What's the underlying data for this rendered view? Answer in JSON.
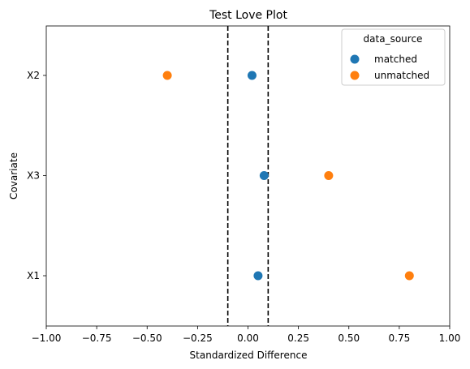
{
  "chart_data": {
    "type": "scatter",
    "title": "Test Love Plot",
    "xlabel": "Standardized Difference",
    "ylabel": "Covariate",
    "xlim": [
      -1.0,
      1.0
    ],
    "xticks": [
      -1.0,
      -0.75,
      -0.5,
      -0.25,
      0.0,
      0.25,
      0.5,
      0.75,
      1.0
    ],
    "xtick_labels": [
      "−1.00",
      "−0.75",
      "−0.50",
      "−0.25",
      "0.00",
      "0.25",
      "0.50",
      "0.75",
      "1.00"
    ],
    "categories": [
      "X2",
      "X3",
      "X1"
    ],
    "reference_lines": [
      -0.1,
      0.1
    ],
    "grid": false,
    "legend": {
      "title": "data_source",
      "placement": "top-right"
    },
    "series": [
      {
        "name": "matched",
        "color": "#1f77b4",
        "x": [
          0.02,
          0.08,
          0.05
        ],
        "y": [
          "X2",
          "X3",
          "X1"
        ]
      },
      {
        "name": "unmatched",
        "color": "#ff7f0e",
        "x": [
          -0.4,
          0.4,
          0.8
        ],
        "y": [
          "X2",
          "X3",
          "X1"
        ]
      }
    ]
  }
}
